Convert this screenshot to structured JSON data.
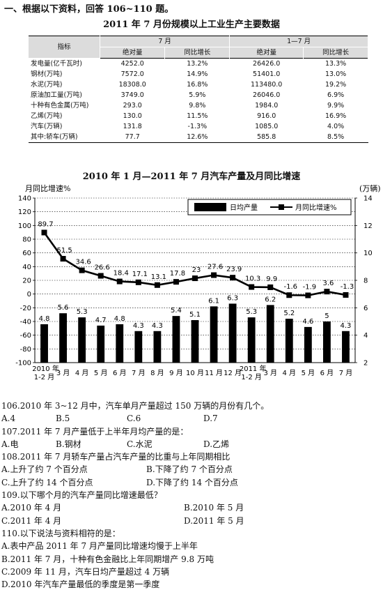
{
  "heading": "一、根据以下资料，回答 106~110 题。",
  "table_title": "2011 年 7 月份规模以上工业生产主要数据",
  "table": {
    "col_indicator": "指标",
    "group1": "7 月",
    "group2": "1—7 月",
    "sub_abs": "绝对量",
    "sub_growth": "同比增长",
    "rows": [
      {
        "name": "发电量(亿千瓦时)",
        "jul": "4252.0",
        "jul_g": "13.2%",
        "ytd": "26426.0",
        "ytd_g": "13.3%"
      },
      {
        "name": "钢材(万吨)",
        "jul": "7572.0",
        "jul_g": "14.9%",
        "ytd": "51401.0",
        "ytd_g": "13.0%"
      },
      {
        "name": "水泥(万吨)",
        "jul": "18308.0",
        "jul_g": "16.8%",
        "ytd": "113480.0",
        "ytd_g": "19.2%"
      },
      {
        "name": "原油加工量(万吨)",
        "jul": "3749.0",
        "jul_g": "5.9%",
        "ytd": "26046.0",
        "ytd_g": "6.9%"
      },
      {
        "name": "十种有色金属(万吨)",
        "jul": "293.0",
        "jul_g": "9.8%",
        "ytd": "1984.0",
        "ytd_g": "9.9%"
      },
      {
        "name": "乙烯(万吨)",
        "jul": "130.0",
        "jul_g": "11.5%",
        "ytd": "916.0",
        "ytd_g": "16.9%"
      },
      {
        "name": "汽车(万辆)",
        "jul": "131.8",
        "jul_g": "-1.3%",
        "ytd": "1085.0",
        "ytd_g": "4.0%"
      },
      {
        "name": "其中:轿车(万辆)",
        "jul": "77.7",
        "jul_g": "12.6%",
        "ytd": "585.8",
        "ytd_g": "8.5%"
      }
    ]
  },
  "chart_title": "2010 年 1 月—2011 年 7 月汽车产量及月同比增速",
  "chart_data": {
    "type": "bar+line",
    "categories": [
      "2010 年 1-2 月",
      "3 月",
      "4 月",
      "5 月",
      "6 月",
      "7 月",
      "8 月",
      "9 月",
      "10 月",
      "11 月",
      "12 月",
      "2011 年 1-2 月",
      "3 月",
      "4 月",
      "5 月",
      "6 月",
      "7 月"
    ],
    "category_labels": [
      [
        "2010 年",
        "1-2 月"
      ],
      [
        "3 月"
      ],
      [
        "4 月"
      ],
      [
        "5 月"
      ],
      [
        "6 月"
      ],
      [
        "7 月"
      ],
      [
        "8 月"
      ],
      [
        "9 月"
      ],
      [
        "10 月"
      ],
      [
        "11 月"
      ],
      [
        "12 月"
      ],
      [
        "2011 年",
        "1-2 月"
      ],
      [
        "3 月"
      ],
      [
        "4 月"
      ],
      [
        "5 月"
      ],
      [
        "6 月"
      ],
      [
        "7 月"
      ]
    ],
    "series": [
      {
        "name": "日均产量",
        "type": "bar",
        "axis": "right",
        "color": "#000000",
        "values": [
          4.8,
          5.6,
          5.3,
          4.7,
          4.8,
          4.3,
          4.3,
          5.4,
          5.1,
          6.1,
          6.3,
          5.3,
          6.2,
          5.2,
          4.6,
          5,
          4.3
        ]
      },
      {
        "name": "月同比增速%",
        "type": "line",
        "axis": "left",
        "color": "#000000",
        "values": [
          89.7,
          51.5,
          34.6,
          26.6,
          18.4,
          17.1,
          13.1,
          17.8,
          23,
          27.6,
          23.9,
          10.3,
          9.9,
          -1.6,
          -1.9,
          3.6,
          -1.3
        ]
      }
    ],
    "ylabel_left": "月同比增速%",
    "ylabel_right": "(万辆)",
    "ylim_left": [
      -100,
      140
    ],
    "ylim_right": [
      2,
      14
    ],
    "yticks_left": [
      140,
      120,
      100,
      80,
      60,
      40,
      20,
      0,
      -20,
      -40,
      -60,
      -80,
      -100
    ],
    "yticks_right": [
      14,
      12,
      10,
      8,
      6,
      4,
      2
    ],
    "grid": true,
    "legend_position": "top-right"
  },
  "questions": [
    {
      "stem": "106.2010 年 3~12 月中，汽车单月产量超过 150 万辆的月份有几个。",
      "options": [
        "A.4",
        "B.5",
        "C.6",
        "D.7"
      ]
    },
    {
      "stem": "107.2011 年 7 月产量低于上半年月均产量的是：",
      "options": [
        "A.电",
        "B.钢材",
        "C.水泥",
        "D.乙烯"
      ]
    },
    {
      "stem": "108.2011 年 7 月轿车产量占汽车产量的比重与上年同期相比",
      "options": [
        "A.上升了约 7 个百分点",
        "B.下降了约 7 个百分点",
        "C.上升了约 14 个百分点",
        "D.下降了约 14 个百分点"
      ]
    },
    {
      "stem": "109.以下哪个月的汽车产量同比增速最低？",
      "options": [
        "A.2010 年 4 月",
        "B.2010 年 5 月",
        "C.2011 年 4 月",
        "D.2011 年 5 月"
      ]
    },
    {
      "stem": "110.以下说法与资料相符的是：",
      "options": [
        "A.表中产品 2011 年 7 月产量同比增速均慢于上半年",
        "B.2011 年 7 月，十种有色金融比上年同期增产 9.8 万吨",
        "C.2009 年 11 月，汽车日均产量超过 4 万辆",
        "D.2010 年汽车产量最低的季度是第一季度"
      ]
    }
  ]
}
